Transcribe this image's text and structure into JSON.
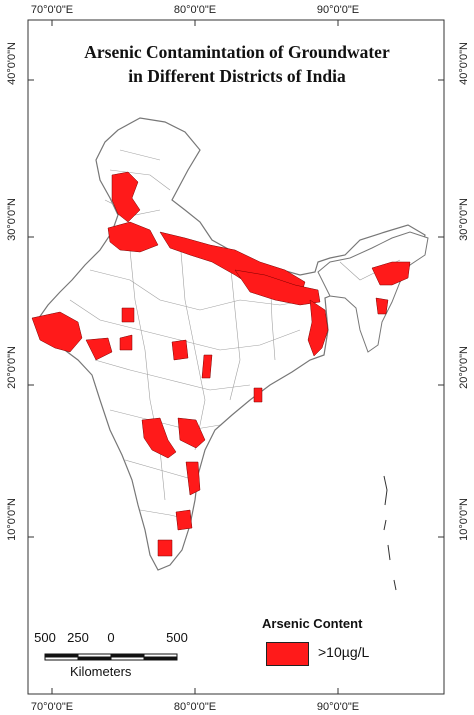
{
  "title": {
    "line1": "Arsenic Contamintation of Groundwater",
    "line2": "in Different Districts of India"
  },
  "axes": {
    "longitude_labels": [
      "70°0'0\"E",
      "80°0'0\"E",
      "90°0'0\"E"
    ],
    "latitude_labels": [
      "40°0'0\"N",
      "30°0'0\"N",
      "20°0'0\"N",
      "10°0'0\"N"
    ]
  },
  "legend": {
    "title": "Arsenic Content",
    "items": [
      {
        "label": ">10µg/L",
        "color": "#ff1a1a"
      }
    ]
  },
  "scale_bar": {
    "ticks": [
      "500",
      "250",
      "0",
      "500"
    ],
    "unit": "Kilometers"
  },
  "colors": {
    "contaminated": "#ff1a1a",
    "district_fill": "#ffffff",
    "boundary": "#8a8a8a",
    "frame": "#333333"
  }
}
